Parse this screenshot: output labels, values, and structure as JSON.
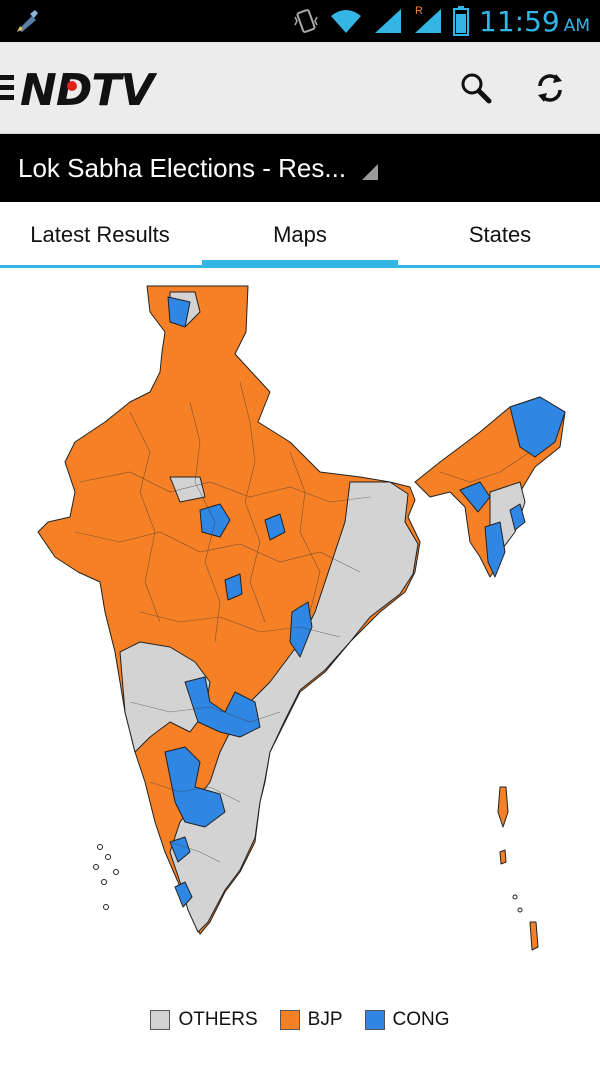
{
  "status_bar": {
    "time": "11:59",
    "ampm": "AM",
    "signal_badge": "R",
    "icons": [
      "cleaner-icon",
      "vibrate-icon",
      "wifi-icon",
      "signal-icon",
      "roaming-signal-icon",
      "battery-icon"
    ]
  },
  "action_bar": {
    "logo_text": "NDTV",
    "icons": [
      "menu-icon",
      "search-icon",
      "refresh-icon"
    ]
  },
  "section": {
    "title": "Lok Sabha Elections - Res..."
  },
  "tabs": [
    {
      "label": "Latest Results",
      "active": false
    },
    {
      "label": "Maps",
      "active": true
    },
    {
      "label": "States",
      "active": false
    }
  ],
  "map": {
    "legend": [
      {
        "label": "OTHERS",
        "color": "#d3d3d3"
      },
      {
        "label": "BJP",
        "color": "#f58025"
      },
      {
        "label": "CONG",
        "color": "#2f86e3"
      }
    ]
  },
  "colors": {
    "accent": "#33b5e5",
    "bjp": "#f58025",
    "cong": "#2f86e3",
    "others": "#d3d3d3"
  }
}
